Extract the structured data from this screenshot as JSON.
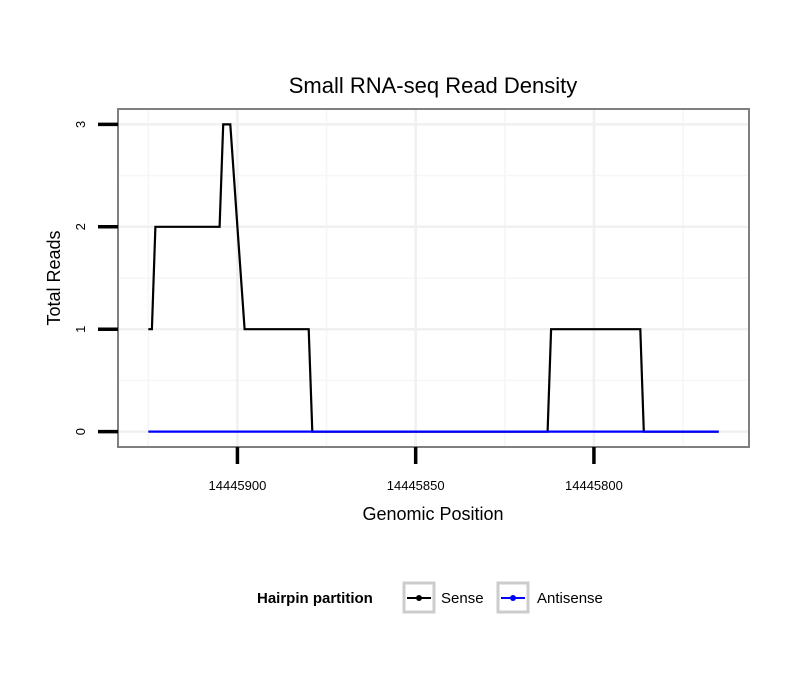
{
  "chart_data": {
    "type": "line",
    "title": "Small RNA-seq Read Density",
    "xlabel": "Genomic Position",
    "ylabel": "Total Reads",
    "x_reversed": true,
    "xlim": [
      14445933.5,
      14445756.5
    ],
    "ylim": [
      -0.15,
      3.15
    ],
    "x_ticks": [
      14445900,
      14445850,
      14445800
    ],
    "x_tick_labels": [
      "14445900",
      "14445850",
      "14445800"
    ],
    "y_ticks": [
      0,
      1,
      2,
      3
    ],
    "y_tick_labels": [
      "0",
      "1",
      "2",
      "3"
    ],
    "grid": true,
    "legend": {
      "title": "Hairpin partition",
      "position": "bottom",
      "entries": [
        "Sense",
        "Antisense"
      ]
    },
    "series": [
      {
        "name": "Sense",
        "color": "#000000",
        "x": [
          14445925,
          14445924,
          14445923,
          14445905,
          14445904,
          14445902,
          14445900,
          14445898,
          14445880,
          14445879,
          14445879,
          14445813,
          14445812,
          14445787,
          14445786,
          14445765
        ],
        "y": [
          1,
          1,
          2,
          2,
          3,
          3,
          2,
          1,
          1,
          0,
          0,
          0,
          1,
          1,
          0,
          0
        ]
      },
      {
        "name": "Antisense",
        "color": "#0000ff",
        "x": [
          14445925,
          14445765
        ],
        "y": [
          0,
          0
        ]
      }
    ]
  }
}
